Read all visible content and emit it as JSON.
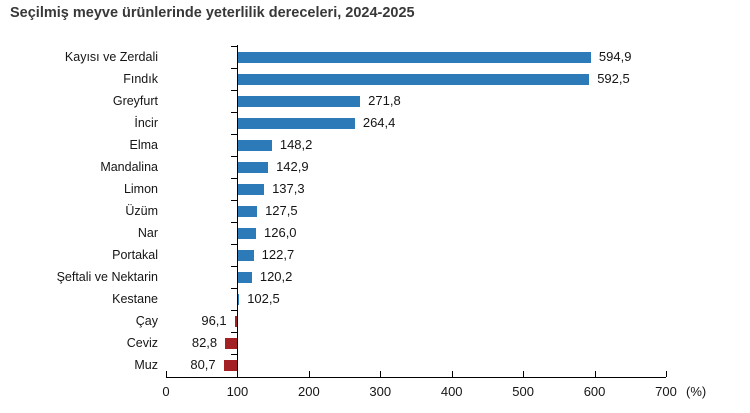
{
  "chart_data": {
    "type": "bar",
    "orientation": "horizontal",
    "title": "Seçilmiş meyve ürünlerinde yeterlilik dereceleri, 2024-2025",
    "categories": [
      "Kayısı ve Zerdali",
      "Fındık",
      "Greyfurt",
      "İncir",
      "Elma",
      "Mandalina",
      "Limon",
      "Üzüm",
      "Nar",
      "Portakal",
      "Şeftali ve Nektarin",
      "Kestane",
      "Çay",
      "Ceviz",
      "Muz"
    ],
    "values": [
      594.9,
      592.5,
      271.8,
      264.4,
      148.2,
      142.9,
      137.3,
      127.5,
      126.0,
      122.7,
      120.2,
      102.5,
      96.1,
      82.8,
      80.7
    ],
    "value_labels": [
      "594,9",
      "592,5",
      "271,8",
      "264,4",
      "148,2",
      "142,9",
      "137,3",
      "127,5",
      "126,0",
      "122,7",
      "120,2",
      "102,5",
      "96,1",
      "82,8",
      "80,7"
    ],
    "baseline": 100,
    "xlabel": "(%)",
    "xlim": [
      0,
      700
    ],
    "x_ticks": [
      0,
      100,
      200,
      300,
      400,
      500,
      600,
      700
    ],
    "grid": false,
    "legend": "none",
    "colors": {
      "bar_above_baseline": "#2C7AB8",
      "bar_below_baseline": "#A32024",
      "axis": "#000000",
      "title": "#383838",
      "text": "#151515"
    }
  }
}
